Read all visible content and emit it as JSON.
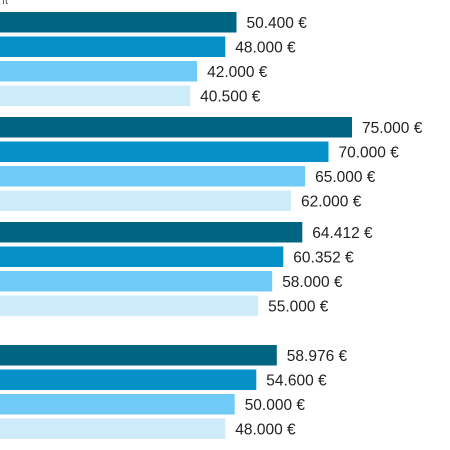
{
  "chart_data": {
    "type": "bar",
    "orientation": "horizontal",
    "cropped_header_fragment": "ıt",
    "groups": [
      {
        "bars": [
          {
            "value": 50400,
            "label": "50.400 €",
            "color": "#006580"
          },
          {
            "value": 48000,
            "label": "48.000 €",
            "color": "#0590C7"
          },
          {
            "value": 42000,
            "label": "42.000 €",
            "color": "#6FCAF5"
          },
          {
            "value": 40500,
            "label": "40.500 €",
            "color": "#CDEBF8"
          }
        ]
      },
      {
        "bars": [
          {
            "value": 75000,
            "label": "75.000 €",
            "color": "#006580"
          },
          {
            "value": 70000,
            "label": "70.000 €",
            "color": "#0590C7"
          },
          {
            "value": 65000,
            "label": "65.000 €",
            "color": "#6FCAF5"
          },
          {
            "value": 62000,
            "label": "62.000 €",
            "color": "#CDEBF8"
          }
        ]
      },
      {
        "bars": [
          {
            "value": 64412,
            "label": "64.412 €",
            "color": "#006580"
          },
          {
            "value": 60352,
            "label": "60.352 €",
            "color": "#0590C7"
          },
          {
            "value": 58000,
            "label": "58.000 €",
            "color": "#6FCAF5"
          },
          {
            "value": 55000,
            "label": "55.000 €",
            "color": "#CDEBF8"
          }
        ]
      },
      {
        "bars": [
          {
            "value": 58976,
            "label": "58.976 €",
            "color": "#006580"
          },
          {
            "value": 54600,
            "label": "54.600 €",
            "color": "#0590C7"
          },
          {
            "value": 50000,
            "label": "50.000 €",
            "color": "#6FCAF5"
          },
          {
            "value": 48000,
            "label": "48.000 €",
            "color": "#CDEBF8"
          }
        ]
      }
    ]
  }
}
